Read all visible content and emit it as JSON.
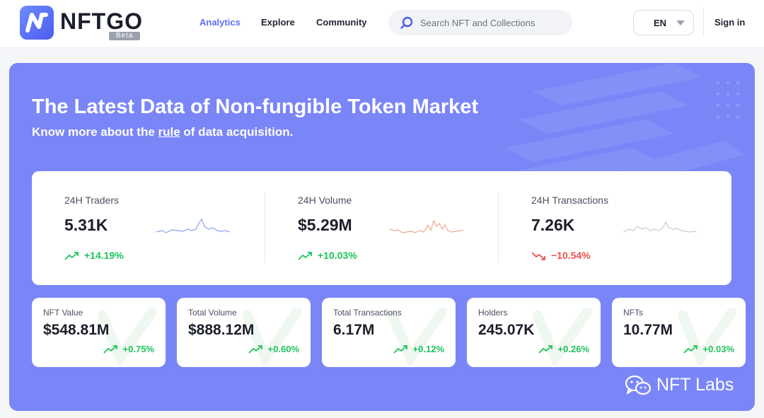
{
  "header": {
    "brand": "NFTGO",
    "badge": "Beta",
    "nav": [
      "Analytics",
      "Explore",
      "Community"
    ],
    "active_nav": "Analytics",
    "search_placeholder": "Search NFT and Collections",
    "language": "EN",
    "sign_in": "Sign in"
  },
  "hero": {
    "title": "The Latest Data of Non-fungible Token Market",
    "subtitle_before": "Know more about the ",
    "subtitle_link": "rule",
    "subtitle_after": " of data acquisition."
  },
  "stats": [
    {
      "label": "24H Traders",
      "value": "5.31K",
      "change": "+14.19%",
      "trend": "up",
      "spark_color": "#8fa0f5"
    },
    {
      "label": "24H Volume",
      "value": "$5.29M",
      "change": "+10.03%",
      "trend": "up",
      "spark_color": "#f2a59a"
    },
    {
      "label": "24H Transactions",
      "value": "7.26K",
      "change": "−10.54%",
      "trend": "down",
      "spark_color": "#c8cbd2"
    }
  ],
  "metrics": [
    {
      "label": "NFT Value",
      "value": "$548.81M",
      "change": "+0.75%"
    },
    {
      "label": "Total Volume",
      "value": "$888.12M",
      "change": "+0.60%"
    },
    {
      "label": "Total Transactions",
      "value": "6.17M",
      "change": "+0.12%"
    },
    {
      "label": "Holders",
      "value": "245.07K",
      "change": "+0.26%"
    },
    {
      "label": "NFTs",
      "value": "10.77M",
      "change": "+0.03%"
    }
  ],
  "watermark": {
    "text": "NFT Labs",
    "icon": "wechat-icon"
  },
  "colors": {
    "accent": "#5b6ef5",
    "hero_bg": "#7a86f7",
    "up": "#1ec45c",
    "down": "#f0504a"
  }
}
